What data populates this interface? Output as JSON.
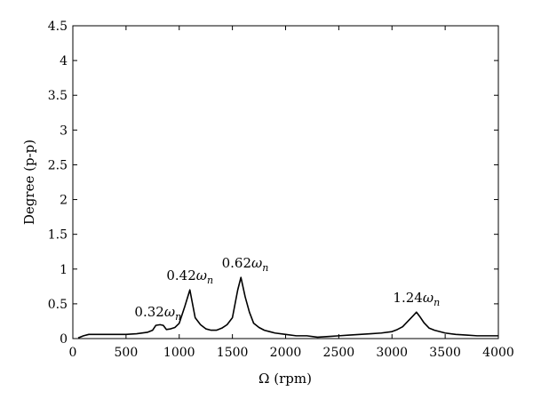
{
  "chart_data": {
    "type": "line",
    "xlabel": "Ω (rpm)",
    "ylabel": "Degree (p-p)",
    "xlim": [
      0,
      4000
    ],
    "ylim": [
      0,
      4.5
    ],
    "xticks": [
      0,
      500,
      1000,
      1500,
      2000,
      2500,
      3000,
      3500,
      4000
    ],
    "yticks": [
      0,
      0.5,
      1,
      1.5,
      2,
      2.5,
      3,
      3.5,
      4,
      4.5
    ],
    "ytick_labels": [
      "0",
      "0.5",
      "1",
      "1.5",
      "2",
      "2.5",
      "3",
      "3.5",
      "4",
      "4.5"
    ],
    "grid": false,
    "series": [
      {
        "color": "#000000",
        "x": [
          50,
          100,
          150,
          200,
          300,
          400,
          500,
          600,
          700,
          750,
          780,
          820,
          850,
          880,
          920,
          960,
          1000,
          1050,
          1100,
          1150,
          1200,
          1250,
          1300,
          1350,
          1400,
          1450,
          1500,
          1550,
          1580,
          1620,
          1660,
          1700,
          1750,
          1800,
          1850,
          1900,
          2000,
          2100,
          2200,
          2300,
          2400,
          2500,
          2600,
          2700,
          2800,
          2900,
          3000,
          3050,
          3100,
          3150,
          3200,
          3230,
          3260,
          3300,
          3350,
          3400,
          3500,
          3600,
          3700,
          3800,
          3900,
          4000
        ],
        "y": [
          0.01,
          0.04,
          0.06,
          0.06,
          0.06,
          0.06,
          0.06,
          0.07,
          0.09,
          0.12,
          0.19,
          0.2,
          0.19,
          0.13,
          0.14,
          0.16,
          0.22,
          0.45,
          0.7,
          0.3,
          0.2,
          0.14,
          0.12,
          0.12,
          0.15,
          0.2,
          0.3,
          0.7,
          0.88,
          0.6,
          0.38,
          0.22,
          0.16,
          0.12,
          0.1,
          0.08,
          0.06,
          0.04,
          0.04,
          0.02,
          0.03,
          0.04,
          0.05,
          0.06,
          0.07,
          0.08,
          0.1,
          0.13,
          0.17,
          0.25,
          0.33,
          0.38,
          0.32,
          0.23,
          0.15,
          0.12,
          0.08,
          0.06,
          0.05,
          0.04,
          0.04,
          0.04
        ]
      }
    ],
    "annotations": [
      {
        "coefficient": "0.32",
        "symbol": "ω",
        "subscript": "n",
        "x": 800,
        "y": 0.22
      },
      {
        "coefficient": "0.42",
        "symbol": "ω",
        "subscript": "n",
        "x": 1100,
        "y": 0.74
      },
      {
        "coefficient": "0.62",
        "symbol": "ω",
        "subscript": "n",
        "x": 1620,
        "y": 0.92
      },
      {
        "coefficient": "1.24",
        "symbol": "ω",
        "subscript": "n",
        "x": 3230,
        "y": 0.42
      }
    ]
  }
}
